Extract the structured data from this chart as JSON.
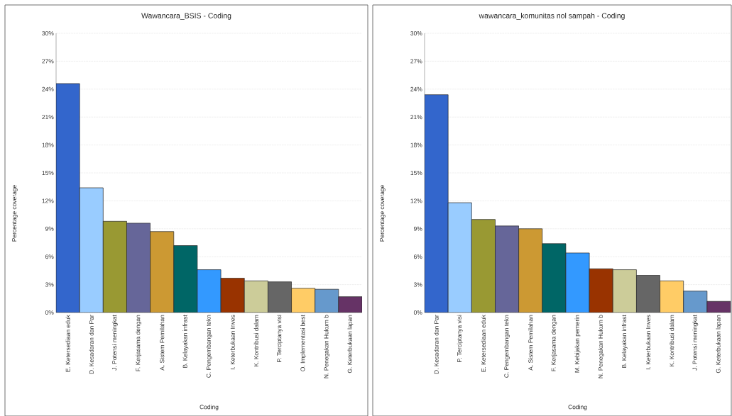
{
  "chart_data": [
    {
      "type": "bar",
      "title": "Wawancara_BSIS - Coding",
      "xlabel": "Coding",
      "ylabel": "Percentage coverage",
      "categories": [
        "E. Ketersediaan eduk",
        "D. Kesadaran dan Par",
        "J. Potensi meningkat",
        "F. Kerjasama dengan",
        "A. Sistem Pemilahan",
        "B. Kelayakan infrast",
        "C. Pengembangan tekn",
        "I. Keterbukaan Inves",
        "K. Kontribusi dalam",
        "P. Terciptanya visi",
        "O. Implementasi best",
        "N. Penegakan Hukum b",
        "G. Keterbukaan lapan"
      ],
      "values": [
        24.6,
        13.4,
        9.8,
        9.6,
        8.7,
        7.2,
        4.6,
        3.7,
        3.4,
        3.3,
        2.6,
        2.5,
        1.7
      ],
      "colors": [
        "#3366cc",
        "#99ccff",
        "#999933",
        "#666699",
        "#cc9933",
        "#006666",
        "#3399ff",
        "#993300",
        "#cccc99",
        "#666666",
        "#ffcc66",
        "#6699cc",
        "#663366"
      ],
      "ylim": [
        0,
        30
      ],
      "yticks": [
        {
          "value": 0,
          "label": "0%"
        },
        {
          "value": 3,
          "label": "3%"
        },
        {
          "value": 6,
          "label": "6%"
        },
        {
          "value": 9,
          "label": "9%"
        },
        {
          "value": 12,
          "label": "12%"
        },
        {
          "value": 15,
          "label": "15%"
        },
        {
          "value": 18,
          "label": "18%"
        },
        {
          "value": 21,
          "label": "21%"
        },
        {
          "value": 24,
          "label": "24%"
        },
        {
          "value": 27,
          "label": "27%"
        },
        {
          "value": 30,
          "label": "30%"
        }
      ],
      "grid": "y"
    },
    {
      "type": "bar",
      "title": "wawancara_komunitas nol sampah - Coding",
      "xlabel": "Coding",
      "ylabel": "Percentage coverage",
      "categories": [
        "D. Kesadaran dan Par",
        "P. Terciptanya visi",
        "E. Ketersediaan eduk",
        "C. Pengembangan tekn",
        "A. Sistem Pemilahan",
        "F. Kerjasama dengan",
        "M. Kebijakan pemerin",
        "N. Penegakan Hukum b",
        "B. Kelayakan infrast",
        "I. Keterbukaan Inves",
        "K. Kontribusi dalam",
        "J. Potensi meningkat",
        "G. Keterbukaan lapan"
      ],
      "values": [
        23.4,
        11.8,
        10.0,
        9.3,
        9.0,
        7.4,
        6.4,
        4.7,
        4.6,
        4.0,
        3.4,
        2.3,
        1.2
      ],
      "colors": [
        "#3366cc",
        "#99ccff",
        "#999933",
        "#666699",
        "#cc9933",
        "#006666",
        "#3399ff",
        "#993300",
        "#cccc99",
        "#666666",
        "#ffcc66",
        "#6699cc",
        "#663366"
      ],
      "ylim": [
        0,
        30
      ],
      "yticks": [
        {
          "value": 0,
          "label": "0%"
        },
        {
          "value": 3,
          "label": "3%"
        },
        {
          "value": 6,
          "label": "6%"
        },
        {
          "value": 9,
          "label": "9%"
        },
        {
          "value": 12,
          "label": "12%"
        },
        {
          "value": 15,
          "label": "15%"
        },
        {
          "value": 18,
          "label": "18%"
        },
        {
          "value": 21,
          "label": "21%"
        },
        {
          "value": 24,
          "label": "24%"
        },
        {
          "value": 27,
          "label": "27%"
        },
        {
          "value": 30,
          "label": "30%"
        }
      ],
      "grid": "y"
    }
  ]
}
